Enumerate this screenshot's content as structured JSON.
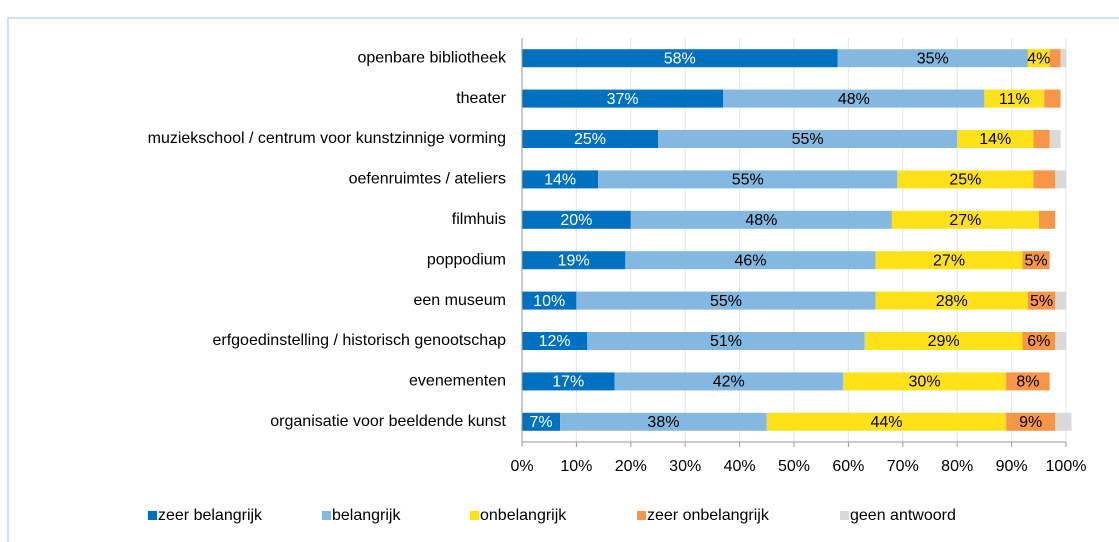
{
  "chart_data": {
    "type": "stacked-barh",
    "categories": [
      "openbare bibliotheek",
      "theater",
      "muziekschool / centrum voor kunstzinnige vorming",
      "oefenruimtes / ateliers",
      "filmhuis",
      "poppodium",
      "een museum",
      "erfgoedinstelling / historisch genootschap",
      "evenementen",
      "organisatie voor beeldende kunst"
    ],
    "series": [
      {
        "name": "zeer belangrijk",
        "color": "#0070c0",
        "values": [
          58,
          37,
          25,
          14,
          20,
          19,
          10,
          12,
          17,
          7
        ],
        "value_labels": [
          "58%",
          "37%",
          "25%",
          "14%",
          "20%",
          "19%",
          "10%",
          "12%",
          "17%",
          "7%"
        ]
      },
      {
        "name": "belangrijk",
        "color": "#84b8e0",
        "values": [
          35,
          48,
          55,
          55,
          48,
          46,
          55,
          51,
          42,
          38
        ],
        "value_labels": [
          "35%",
          "48%",
          "55%",
          "55%",
          "48%",
          "46%",
          "55%",
          "51%",
          "42%",
          "38%"
        ]
      },
      {
        "name": "onbelangrijk",
        "color": "#ffe11a",
        "values": [
          4,
          11,
          14,
          25,
          27,
          27,
          28,
          29,
          30,
          44
        ],
        "value_labels": [
          "4%",
          "11%",
          "14%",
          "25%",
          "27%",
          "27%",
          "28%",
          "29%",
          "30%",
          "44%"
        ]
      },
      {
        "name": "zeer onbelangrijk",
        "color": "#f79646",
        "values": [
          2,
          3,
          3,
          4,
          3,
          5,
          5,
          6,
          8,
          9
        ],
        "value_labels": [
          null,
          null,
          null,
          null,
          null,
          "5%",
          "5%",
          "6%",
          "8%",
          "9%"
        ]
      },
      {
        "name": "geen antwoord",
        "color": "#d9d9d9",
        "values": [
          1,
          0,
          2,
          2,
          0,
          0,
          2,
          2,
          0,
          3
        ],
        "value_labels": [
          null,
          null,
          null,
          null,
          null,
          null,
          null,
          null,
          null,
          null
        ]
      }
    ],
    "xlim": [
      0,
      100
    ],
    "xticks": [
      {
        "value": 0,
        "label": "0%"
      },
      {
        "value": 10,
        "label": "10%"
      },
      {
        "value": 20,
        "label": "20%"
      },
      {
        "value": 30,
        "label": "30%"
      },
      {
        "value": 40,
        "label": "40%"
      },
      {
        "value": 50,
        "label": "50%"
      },
      {
        "value": 60,
        "label": "60%"
      },
      {
        "value": 70,
        "label": "70%"
      },
      {
        "value": 80,
        "label": "80%"
      },
      {
        "value": 90,
        "label": "90%"
      },
      {
        "value": 100,
        "label": "100%"
      }
    ],
    "grid": true,
    "legend": "bottom"
  }
}
